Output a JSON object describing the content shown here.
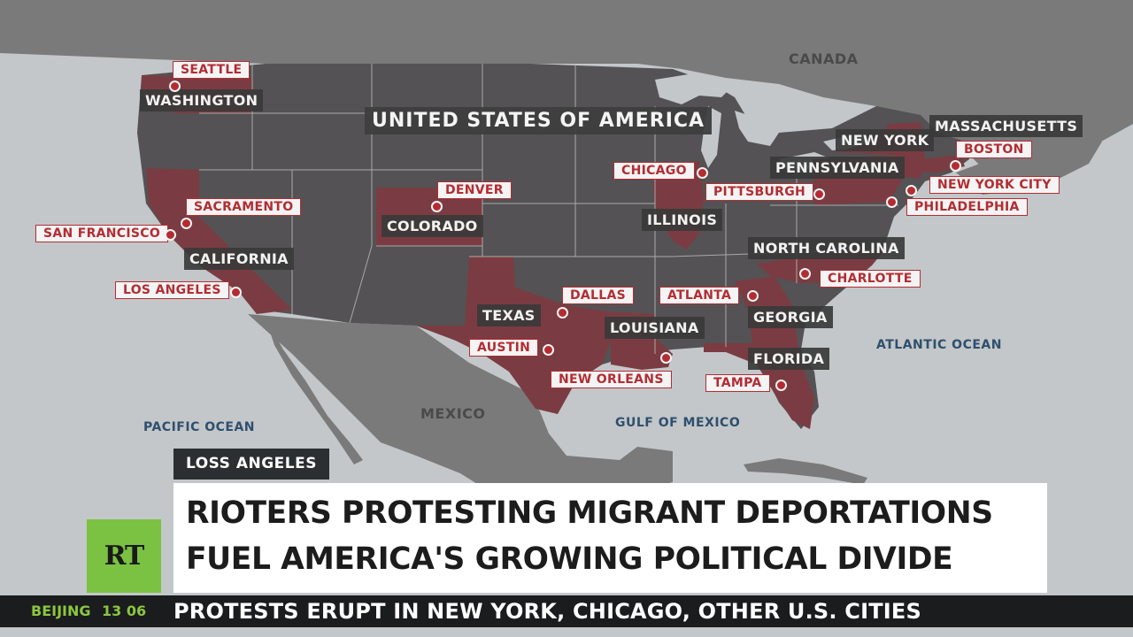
{
  "map": {
    "country_label": "UNITED STATES OF AMERICA",
    "region_labels": {
      "canada": "CANADA",
      "mexico": "MEXICO",
      "pacific": "PACIFIC OCEAN",
      "atlantic": "ATLANTIC OCEAN",
      "gulf": "GULF OF MEXICO"
    },
    "states": {
      "washington": "WASHINGTON",
      "california": "CALIFORNIA",
      "colorado": "COLORADO",
      "texas": "TEXAS",
      "louisiana": "LOUISIANA",
      "illinois": "ILLINOIS",
      "georgia": "GEORGIA",
      "florida": "FLORIDA",
      "north_carolina": "NORTH CAROLINA",
      "pennsylvania": "PENNSYLVANIA",
      "new_york": "NEW YORK",
      "massachusetts": "MASSACHUSETTS"
    },
    "cities": {
      "seattle": "SEATTLE",
      "sacramento": "SACRAMENTO",
      "san_francisco": "SAN FRANCISCO",
      "los_angeles": "LOS ANGELES",
      "denver": "DENVER",
      "dallas": "DALLAS",
      "austin": "AUSTIN",
      "new_orleans": "NEW ORLEANS",
      "chicago": "CHICAGO",
      "atlanta": "ATLANTA",
      "tampa": "TAMPA",
      "charlotte": "CHARLOTTE",
      "pittsburgh": "PITTSBURGH",
      "philadelphia": "PHILADELPHIA",
      "new_york_city": "NEW YORK CITY",
      "boston": "BOSTON"
    },
    "colors": {
      "water": "#c3c7c9",
      "land": "#7d7d7d",
      "usa": "#545254",
      "highlight": "#7a3c42",
      "accent_red": "#b42c32"
    }
  },
  "lower_third": {
    "dateline": "LOSS ANGELES",
    "headline_line1": "RIOTERS PROTESTING MIGRANT DEPORTATIONS",
    "headline_line2": "FUEL AMERICA'S GROWING POLITICAL DIVIDE",
    "logo": "RT"
  },
  "ticker": {
    "city": "BEIJING",
    "time": "13 06",
    "text": "PROTESTS ERUPT IN NEW YORK, CHICAGO, OTHER U.S. CITIES"
  }
}
